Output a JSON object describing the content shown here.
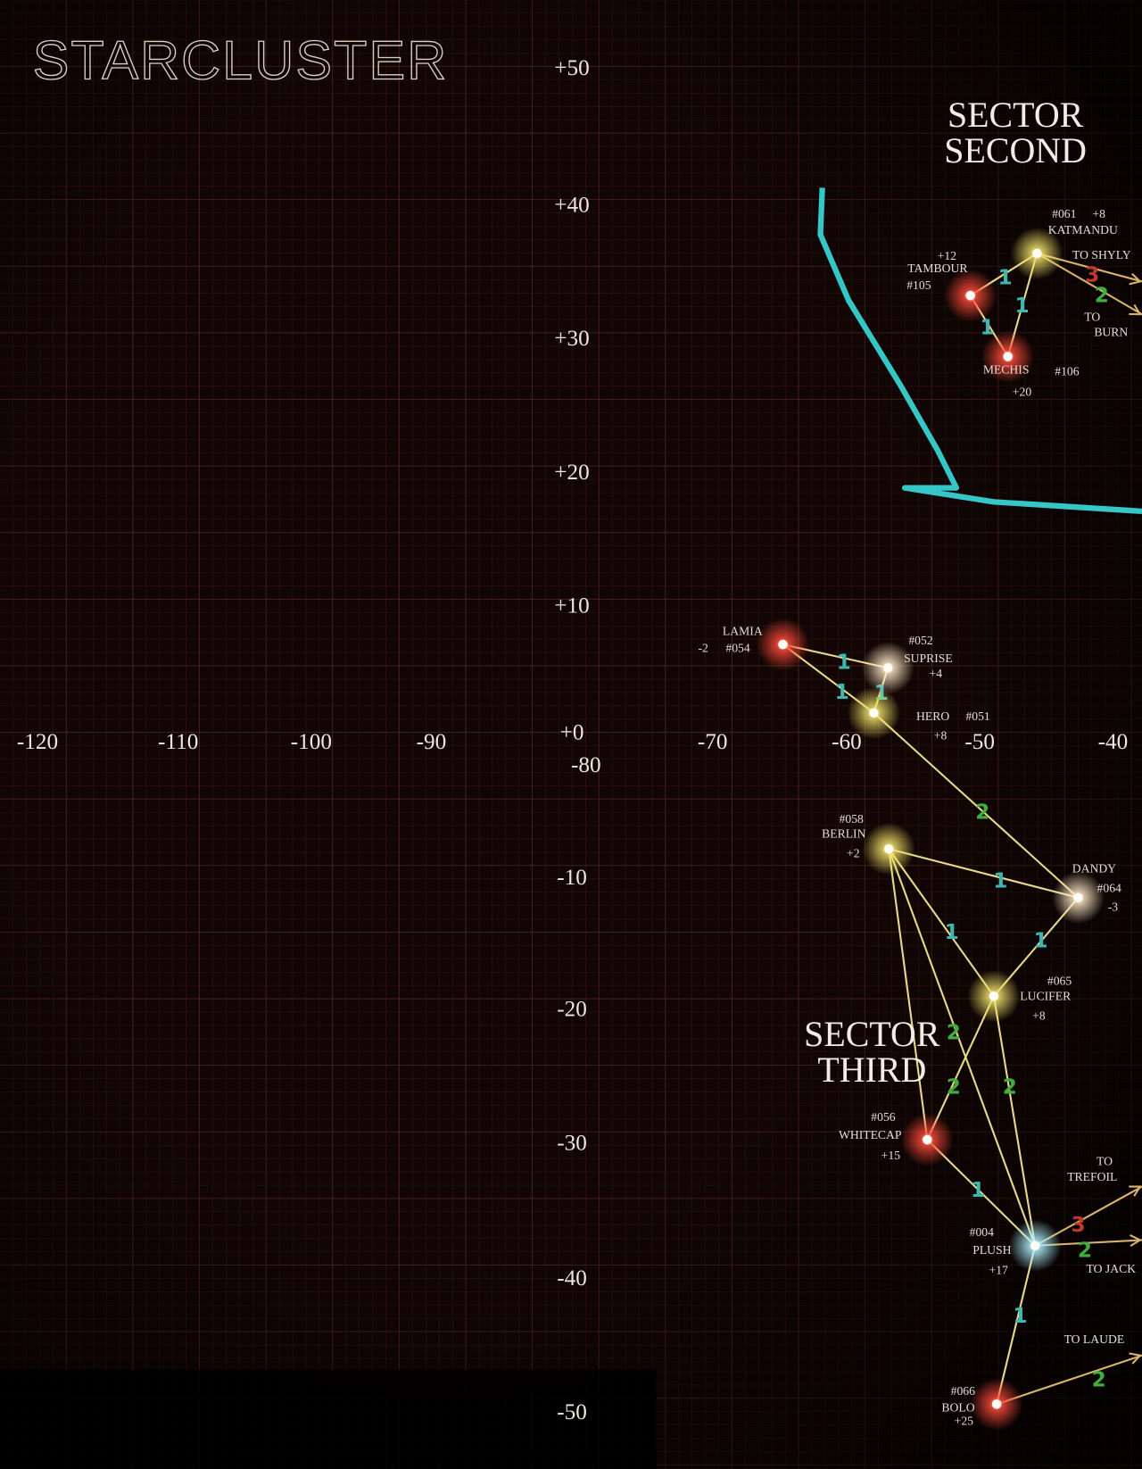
{
  "title": "STARCLUSTER",
  "sectors": [
    {
      "lines": [
        "SECTOR",
        "SECOND"
      ]
    },
    {
      "lines": [
        "SECTOR",
        "THIRD"
      ]
    }
  ],
  "y_axis_labels": [
    "+50",
    "+40",
    "+30",
    "+20",
    "+10",
    "+0",
    "-10",
    "-20",
    "-30",
    "-40",
    "-50"
  ],
  "x_axis_labels": [
    "-120",
    "-110",
    "-100",
    "-90",
    "-80",
    "-70",
    "-60",
    "-50",
    "-40"
  ],
  "stars": [
    {
      "id": "#061",
      "name": "KATMANDU",
      "value": "+8"
    },
    {
      "id": "#105",
      "name": "TAMBOUR",
      "value": "+12"
    },
    {
      "id": "#106",
      "name": "MECHIS",
      "value": "+20"
    },
    {
      "id": "#054",
      "name": "LAMIA",
      "value": "-2"
    },
    {
      "id": "#052",
      "name": "SUPRISE",
      "value": "+4"
    },
    {
      "id": "#051",
      "name": "HERO",
      "value": "+8"
    },
    {
      "id": "#058",
      "name": "BERLIN",
      "value": "+2"
    },
    {
      "id": "#064",
      "name": "DANDY",
      "value": "-3"
    },
    {
      "id": "#065",
      "name": "LUCIFER",
      "value": "+8"
    },
    {
      "id": "#056",
      "name": "WHITECAP",
      "value": "+15"
    },
    {
      "id": "#004",
      "name": "PLUSH",
      "value": "+17"
    },
    {
      "id": "#066",
      "name": "BOLO",
      "value": "+25"
    }
  ],
  "links": [
    {
      "weight": 1
    },
    {
      "weight": 1
    },
    {
      "weight": 1
    },
    {
      "weight": 1
    },
    {
      "weight": 1
    },
    {
      "weight": 1
    },
    {
      "weight": 2
    },
    {
      "weight": 1
    },
    {
      "weight": 1
    },
    {
      "weight": 1
    },
    {
      "weight": 2
    },
    {
      "weight": 2
    },
    {
      "weight": 2
    },
    {
      "weight": 1
    },
    {
      "weight": 1
    }
  ],
  "exits": [
    {
      "label_lines": [
        "TO SHYLY"
      ],
      "weight": 3
    },
    {
      "label_lines": [
        "TO",
        "BURN"
      ],
      "weight": 2
    },
    {
      "label_lines": [
        "TO",
        "TREFOIL"
      ],
      "weight": 3
    },
    {
      "label_lines": [
        "TO JACK"
      ],
      "weight": 2
    },
    {
      "label_lines": [
        "TO LAUDE"
      ],
      "weight": 2
    }
  ]
}
